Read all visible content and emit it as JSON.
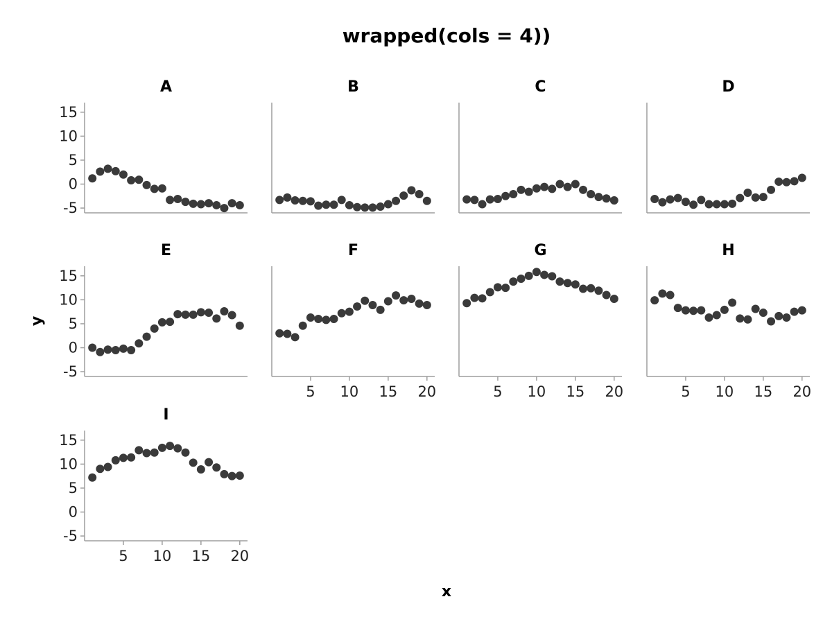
{
  "chart_data": {
    "type": "scatter",
    "title": "wrapped(cols = 4))",
    "xlabel": "x",
    "ylabel": "y",
    "xlim": [
      0,
      21
    ],
    "ylim": [
      -6,
      17
    ],
    "xticks": [
      5,
      10,
      15,
      20
    ],
    "yticks": [
      -5,
      0,
      5,
      10,
      15
    ],
    "marker_color": "#3a3a3a",
    "axis_color": "#9e9e9e",
    "legend": "none",
    "grid": false,
    "x": [
      1,
      2,
      3,
      4,
      5,
      6,
      7,
      8,
      9,
      10,
      11,
      12,
      13,
      14,
      15,
      16,
      17,
      18,
      19,
      20
    ],
    "panels": [
      {
        "name": "A",
        "values": [
          1.2,
          2.6,
          3.2,
          2.7,
          2.0,
          0.8,
          0.9,
          -0.2,
          -1.0,
          -0.9,
          -3.3,
          -3.1,
          -3.7,
          -4.1,
          -4.2,
          -4.0,
          -4.4,
          -5.0,
          -4.0,
          -4.4
        ]
      },
      {
        "name": "B",
        "values": [
          -3.3,
          -2.8,
          -3.4,
          -3.5,
          -3.6,
          -4.5,
          -4.3,
          -4.3,
          -3.3,
          -4.4,
          -4.8,
          -4.9,
          -4.9,
          -4.7,
          -4.2,
          -3.5,
          -2.4,
          -1.3,
          -2.1,
          -3.5
        ]
      },
      {
        "name": "C",
        "values": [
          -3.2,
          -3.3,
          -4.2,
          -3.2,
          -3.1,
          -2.5,
          -2.1,
          -1.2,
          -1.6,
          -0.9,
          -0.6,
          -1.0,
          0.0,
          -0.6,
          0.0,
          -1.2,
          -2.1,
          -2.7,
          -3.0,
          -3.4
        ]
      },
      {
        "name": "D",
        "values": [
          -3.1,
          -3.8,
          -3.2,
          -2.9,
          -3.7,
          -4.3,
          -3.3,
          -4.2,
          -4.2,
          -4.2,
          -4.1,
          -2.9,
          -1.8,
          -2.8,
          -2.7,
          -1.2,
          0.5,
          0.4,
          0.6,
          1.3
        ]
      },
      {
        "name": "E",
        "values": [
          0.0,
          -0.9,
          -0.4,
          -0.5,
          -0.2,
          -0.5,
          0.9,
          2.3,
          4.0,
          5.3,
          5.4,
          7.0,
          6.9,
          6.9,
          7.4,
          7.3,
          6.1,
          7.6,
          6.8,
          4.6
        ]
      },
      {
        "name": "F",
        "values": [
          3.0,
          2.9,
          2.2,
          4.6,
          6.3,
          6.0,
          5.8,
          6.0,
          7.2,
          7.5,
          8.6,
          9.8,
          8.9,
          7.9,
          9.7,
          10.9,
          9.9,
          10.2,
          9.2,
          8.9
        ]
      },
      {
        "name": "G",
        "values": [
          9.3,
          10.4,
          10.3,
          11.6,
          12.6,
          12.5,
          13.8,
          14.4,
          15.0,
          15.8,
          15.2,
          14.9,
          13.8,
          13.5,
          13.2,
          12.3,
          12.4,
          11.9,
          11.0,
          10.2
        ]
      },
      {
        "name": "H",
        "values": [
          9.9,
          11.3,
          11.0,
          8.3,
          7.8,
          7.7,
          7.8,
          6.3,
          6.8,
          7.9,
          9.4,
          6.1,
          5.9,
          8.1,
          7.3,
          5.5,
          6.6,
          6.3,
          7.5,
          7.8
        ]
      },
      {
        "name": "I",
        "values": [
          7.2,
          9.0,
          9.4,
          10.8,
          11.3,
          11.4,
          12.9,
          12.3,
          12.4,
          13.4,
          13.8,
          13.3,
          12.4,
          10.3,
          8.9,
          10.4,
          9.3,
          7.9,
          7.5,
          7.6
        ]
      }
    ]
  }
}
